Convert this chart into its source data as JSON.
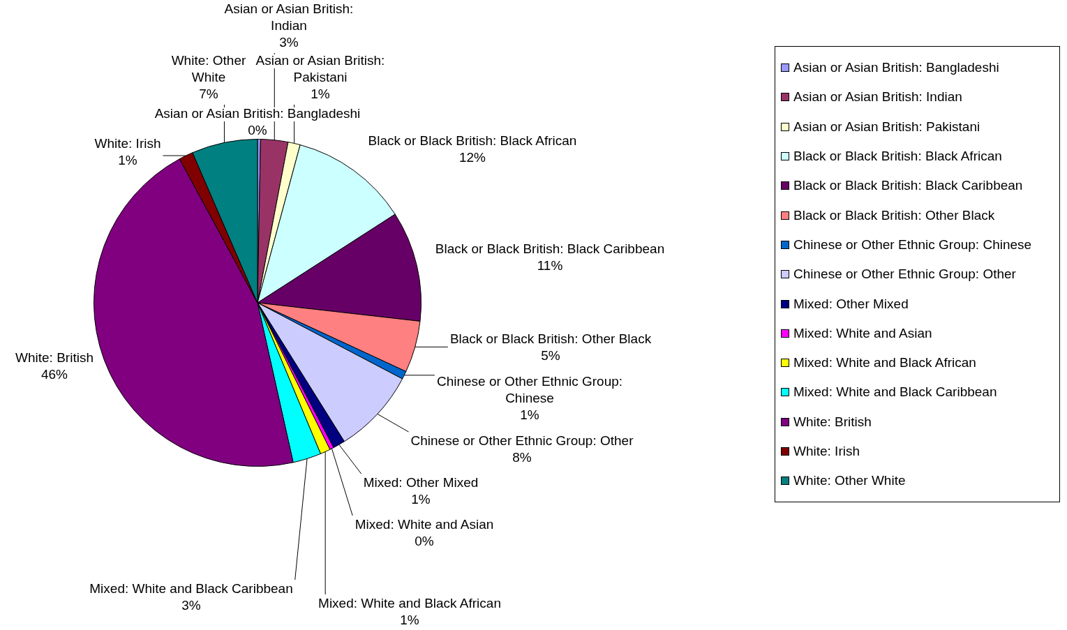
{
  "chart_data": {
    "type": "pie",
    "categories": [
      "Asian or Asian British: Bangladeshi",
      "Asian or Asian British: Indian",
      "Asian or Asian British: Pakistani",
      "Black or Black British: Black African",
      "Black or Black British: Black Caribbean",
      "Black or Black British: Other Black",
      "Chinese or Other Ethnic Group: Chinese",
      "Chinese or Other Ethnic Group: Other",
      "Mixed: Other Mixed",
      "Mixed: White and Asian",
      "Mixed: White and Black African",
      "Mixed: White and Black Caribbean",
      "White: British",
      "White: Irish",
      "White: Other White"
    ],
    "values": [
      0.3,
      2.7,
      1.2,
      11.7,
      10.9,
      5.1,
      0.8,
      8.4,
      1.2,
      0.4,
      1.0,
      2.8,
      45.6,
      1.4,
      6.5
    ],
    "value_labels": [
      "0%",
      "3%",
      "1%",
      "12%",
      "11%",
      "5%",
      "1%",
      "8%",
      "1%",
      "0%",
      "1%",
      "3%",
      "46%",
      "1%",
      "7%"
    ],
    "colors": [
      "#9999ff",
      "#993366",
      "#ffffcc",
      "#ccffff",
      "#660066",
      "#ff8080",
      "#0066cc",
      "#ccccff",
      "#000080",
      "#ff00ff",
      "#ffff00",
      "#00ffff",
      "#800080",
      "#800000",
      "#008080"
    ],
    "legend": "right"
  }
}
